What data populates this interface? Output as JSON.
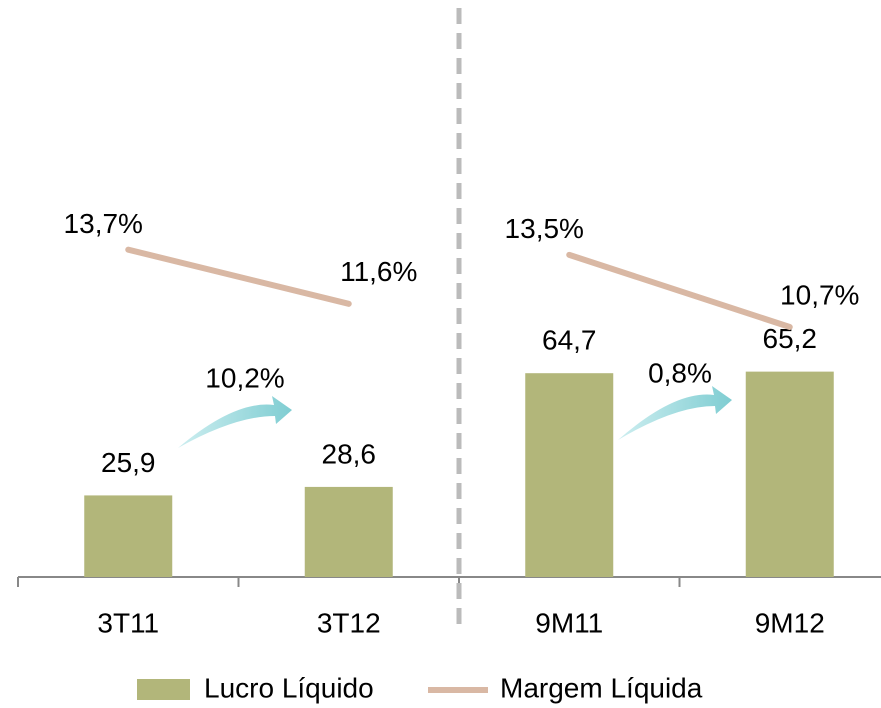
{
  "chart_data": {
    "type": "bar",
    "categories": [
      "3T11",
      "3T12",
      "9M11",
      "9M12"
    ],
    "series": [
      {
        "name": "Lucro Líquido",
        "type": "bar",
        "color": "#b2b67a",
        "values": [
          25.9,
          28.6,
          64.7,
          65.2
        ],
        "value_labels": [
          "25,9",
          "28,6",
          "64,7",
          "65,2"
        ]
      },
      {
        "name": "Margem Líquida",
        "type": "line",
        "axis": "y2",
        "color": "#d9b8a4",
        "values": [
          13.7,
          11.6,
          13.5,
          10.7
        ],
        "value_labels": [
          "13,7%",
          "11,6%",
          "13,5%",
          "10,7%"
        ]
      }
    ],
    "annotations": [
      {
        "value": 10.2,
        "label": "10,2%"
      },
      {
        "value": 0.8,
        "label": "0,8%"
      }
    ],
    "ylim": [
      0,
      180
    ],
    "y2lim": [
      1,
      23
    ],
    "divider_after": 1,
    "legend": "bottom"
  }
}
